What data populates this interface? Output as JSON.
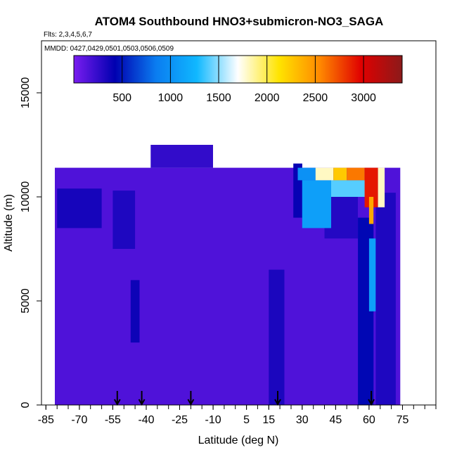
{
  "chart_data": {
    "type": "heatmap",
    "title": "ATOM4 Southbound HNO3+submicron-NO3_SAGA",
    "subtitle": "Flts: 2,3,4,5,6,7",
    "dates_label": "MMDD: 0427,0429,0501,0503,0506,0509",
    "xlabel": "Latitude (deg N)",
    "ylabel": "Altitude (m)",
    "xlim": [
      -87,
      90
    ],
    "ylim": [
      0,
      17500
    ],
    "x_ticks": [
      -85,
      -70,
      -55,
      -40,
      -25,
      -10,
      5,
      15,
      30,
      45,
      60,
      75
    ],
    "x_minor_ticks": [
      -85,
      -80,
      -75,
      -70,
      -65,
      -60,
      -55,
      -50,
      -45,
      -40,
      -35,
      -30,
      -25,
      -20,
      -15,
      -10,
      -5,
      0,
      5,
      10,
      15,
      20,
      25,
      30,
      35,
      40,
      45,
      50,
      55,
      60,
      65,
      70,
      75,
      80,
      85,
      90
    ],
    "y_ticks": [
      0,
      5000,
      10000,
      15000
    ],
    "colorbar": {
      "min": 0,
      "max": 3400,
      "ticks": [
        500,
        1000,
        1500,
        2000,
        2500,
        3000
      ],
      "colors": [
        "#7a1cf0",
        "#0000b0",
        "#0a7cf0",
        "#10b8ff",
        "#ffffff",
        "#ffe400",
        "#ff8800",
        "#e00000",
        "#8b1a1a"
      ]
    },
    "flight_arrow_latitudes": [
      -53,
      -42,
      -20,
      19,
      61
    ],
    "background_value": 150,
    "regions": [
      {
        "lat": [
          -81,
          74
        ],
        "alt": [
          0,
          11400
        ],
        "value": 150
      },
      {
        "lat": [
          -38,
          -10
        ],
        "alt": [
          11400,
          12500
        ],
        "value": 250
      },
      {
        "lat": [
          -80,
          -60
        ],
        "alt": [
          8500,
          10400
        ],
        "value": 350
      },
      {
        "lat": [
          -55,
          -45
        ],
        "alt": [
          7500,
          10300
        ],
        "value": 320
      },
      {
        "lat": [
          -47,
          -43
        ],
        "alt": [
          3000,
          6000
        ],
        "value": 380
      },
      {
        "lat": [
          15,
          22
        ],
        "alt": [
          0,
          6500
        ],
        "value": 330
      },
      {
        "lat": [
          26,
          30
        ],
        "alt": [
          9000,
          11600
        ],
        "value": 400
      },
      {
        "lat": [
          40,
          55
        ],
        "alt": [
          8000,
          10500
        ],
        "value": 300
      },
      {
        "lat": [
          55,
          62
        ],
        "alt": [
          0,
          9000
        ],
        "value": 450
      },
      {
        "lat": [
          60,
          63
        ],
        "alt": [
          4500,
          8000
        ],
        "value": 1100
      },
      {
        "lat": [
          63,
          72
        ],
        "alt": [
          0,
          10200
        ],
        "value": 320
      },
      {
        "lat": [
          30,
          43
        ],
        "alt": [
          8500,
          10800
        ],
        "value": 1100
      },
      {
        "lat": [
          43,
          59
        ],
        "alt": [
          10000,
          10800
        ],
        "value": 1400
      },
      {
        "lat": [
          28,
          36
        ],
        "alt": [
          10800,
          11400
        ],
        "value": 1000
      },
      {
        "lat": [
          36,
          44
        ],
        "alt": [
          10800,
          11400
        ],
        "value": 1800
      },
      {
        "lat": [
          44,
          50
        ],
        "alt": [
          10800,
          11400
        ],
        "value": 2250
      },
      {
        "lat": [
          50,
          58
        ],
        "alt": [
          10800,
          11400
        ],
        "value": 2600
      },
      {
        "lat": [
          58,
          64
        ],
        "alt": [
          9500,
          11400
        ],
        "value": 2900
      },
      {
        "lat": [
          60,
          62
        ],
        "alt": [
          8700,
          10000
        ],
        "value": 2400
      },
      {
        "lat": [
          64,
          67
        ],
        "alt": [
          9500,
          11400
        ],
        "value": 1800
      }
    ]
  }
}
